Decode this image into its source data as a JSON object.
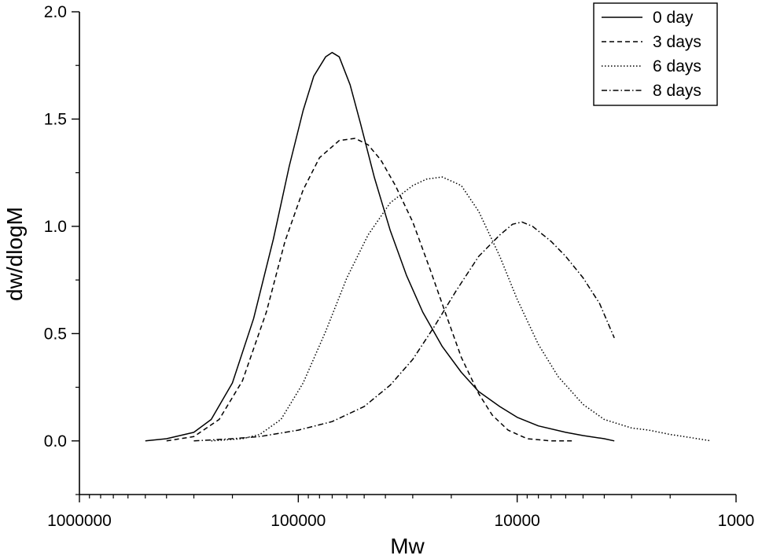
{
  "chart_data": {
    "type": "line",
    "title": "",
    "xlabel": "Mw",
    "ylabel": "dw/dlogM",
    "x_scale": "log",
    "x_reversed": true,
    "xlim": [
      1000000,
      1000
    ],
    "ylim": [
      -0.25,
      2.0
    ],
    "x_ticks": [
      1000000,
      100000,
      10000,
      1000
    ],
    "x_tick_labels": [
      "1000000",
      "100000",
      "10000",
      "1000"
    ],
    "y_ticks": [
      0.0,
      0.5,
      1.0,
      1.5,
      2.0
    ],
    "y_tick_labels": [
      "0.0",
      "0.5",
      "1.0",
      "1.5",
      "2.0"
    ],
    "grid": false,
    "legend": {
      "position": "top-right",
      "box": true
    },
    "series": [
      {
        "name": "0 day",
        "line_style": "solid",
        "points": [
          [
            500000,
            0.0
          ],
          [
            400000,
            0.01
          ],
          [
            300000,
            0.04
          ],
          [
            250000,
            0.1
          ],
          [
            200000,
            0.27
          ],
          [
            160000,
            0.57
          ],
          [
            130000,
            0.94
          ],
          [
            110000,
            1.28
          ],
          [
            95000,
            1.54
          ],
          [
            85000,
            1.7
          ],
          [
            75000,
            1.79
          ],
          [
            70000,
            1.81
          ],
          [
            65000,
            1.79
          ],
          [
            58000,
            1.66
          ],
          [
            52000,
            1.48
          ],
          [
            45000,
            1.23
          ],
          [
            38000,
            0.98
          ],
          [
            32000,
            0.77
          ],
          [
            27000,
            0.6
          ],
          [
            22000,
            0.44
          ],
          [
            18000,
            0.32
          ],
          [
            15000,
            0.23
          ],
          [
            12000,
            0.16
          ],
          [
            10000,
            0.11
          ],
          [
            8000,
            0.07
          ],
          [
            6000,
            0.04
          ],
          [
            5000,
            0.025
          ],
          [
            4000,
            0.01
          ],
          [
            3600,
            0.0
          ]
        ]
      },
      {
        "name": "3 days",
        "line_style": "dashed",
        "points": [
          [
            400000,
            0.0
          ],
          [
            300000,
            0.02
          ],
          [
            230000,
            0.1
          ],
          [
            180000,
            0.28
          ],
          [
            140000,
            0.6
          ],
          [
            115000,
            0.93
          ],
          [
            95000,
            1.17
          ],
          [
            80000,
            1.32
          ],
          [
            65000,
            1.4
          ],
          [
            55000,
            1.41
          ],
          [
            48000,
            1.38
          ],
          [
            42000,
            1.31
          ],
          [
            36000,
            1.19
          ],
          [
            30000,
            1.02
          ],
          [
            25000,
            0.8
          ],
          [
            21000,
            0.58
          ],
          [
            18000,
            0.39
          ],
          [
            15000,
            0.22
          ],
          [
            13000,
            0.12
          ],
          [
            11000,
            0.05
          ],
          [
            9000,
            0.01
          ],
          [
            7000,
            0.0
          ],
          [
            5500,
            0.0
          ]
        ]
      },
      {
        "name": "6 days",
        "line_style": "dotted",
        "points": [
          [
            250000,
            0.0
          ],
          [
            180000,
            0.01
          ],
          [
            150000,
            0.03
          ],
          [
            120000,
            0.1
          ],
          [
            95000,
            0.27
          ],
          [
            75000,
            0.51
          ],
          [
            60000,
            0.76
          ],
          [
            48000,
            0.96
          ],
          [
            38000,
            1.11
          ],
          [
            30000,
            1.19
          ],
          [
            26000,
            1.22
          ],
          [
            22000,
            1.23
          ],
          [
            18000,
            1.19
          ],
          [
            15000,
            1.07
          ],
          [
            12000,
            0.86
          ],
          [
            10000,
            0.66
          ],
          [
            8000,
            0.45
          ],
          [
            6500,
            0.3
          ],
          [
            5000,
            0.17
          ],
          [
            4000,
            0.1
          ],
          [
            3000,
            0.06
          ],
          [
            2500,
            0.05
          ],
          [
            2000,
            0.03
          ],
          [
            1600,
            0.015
          ],
          [
            1300,
            0.0
          ]
        ]
      },
      {
        "name": "8 days",
        "line_style": "dashdot",
        "points": [
          [
            300000,
            0.0
          ],
          [
            200000,
            0.01
          ],
          [
            150000,
            0.02
          ],
          [
            100000,
            0.05
          ],
          [
            70000,
            0.09
          ],
          [
            50000,
            0.16
          ],
          [
            38000,
            0.26
          ],
          [
            30000,
            0.38
          ],
          [
            24000,
            0.53
          ],
          [
            19000,
            0.7
          ],
          [
            15000,
            0.86
          ],
          [
            12000,
            0.96
          ],
          [
            10500,
            1.01
          ],
          [
            9500,
            1.02
          ],
          [
            8500,
            1.0
          ],
          [
            7000,
            0.93
          ],
          [
            6000,
            0.86
          ],
          [
            5000,
            0.76
          ],
          [
            4200,
            0.64
          ],
          [
            3600,
            0.48
          ]
        ]
      }
    ]
  }
}
